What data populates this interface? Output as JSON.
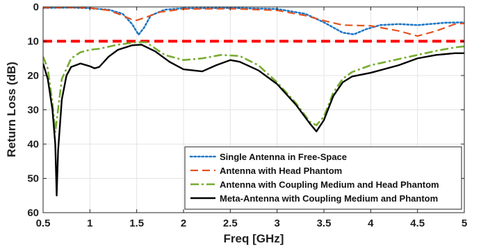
{
  "chart_data": {
    "type": "line",
    "title": "",
    "xlabel": "Freq [GHz]",
    "ylabel": "Return Loss (dB)",
    "xlim": [
      0.5,
      5
    ],
    "ylim": [
      0,
      60
    ],
    "y_inverted": true,
    "grid": true,
    "legend_position": "bottom-right",
    "xticks": [
      0.5,
      1,
      1.5,
      2,
      2.5,
      3,
      3.5,
      4,
      4.5,
      5
    ],
    "yticks": [
      0,
      10,
      20,
      30,
      40,
      50,
      60
    ],
    "reference_line": {
      "y": 10,
      "color": "#ff0000",
      "style": "dashed"
    },
    "series": [
      {
        "name": "Single Antenna in Free-Space",
        "color": "#1f77c4",
        "style": "dotted",
        "points": [
          [
            0.5,
            0.3
          ],
          [
            0.8,
            0.2
          ],
          [
            1.0,
            0.4
          ],
          [
            1.2,
            0.8
          ],
          [
            1.35,
            2
          ],
          [
            1.45,
            5
          ],
          [
            1.52,
            8.1
          ],
          [
            1.58,
            6
          ],
          [
            1.65,
            2.5
          ],
          [
            1.8,
            0.8
          ],
          [
            2.0,
            0.4
          ],
          [
            2.5,
            0.3
          ],
          [
            3.0,
            0.6
          ],
          [
            3.3,
            2
          ],
          [
            3.5,
            4.5
          ],
          [
            3.7,
            7.5
          ],
          [
            3.82,
            8
          ],
          [
            3.95,
            6.5
          ],
          [
            4.1,
            5.3
          ],
          [
            4.3,
            5
          ],
          [
            4.5,
            5.3
          ],
          [
            4.8,
            4.6
          ],
          [
            5.0,
            4.5
          ]
        ]
      },
      {
        "name": "Antenna with Head Phantom",
        "color": "#e6531f",
        "style": "dashed",
        "points": [
          [
            0.5,
            0.2
          ],
          [
            0.8,
            0.2
          ],
          [
            1.0,
            0.3
          ],
          [
            1.2,
            1
          ],
          [
            1.35,
            2.5
          ],
          [
            1.45,
            3.7
          ],
          [
            1.5,
            3.9
          ],
          [
            1.6,
            3
          ],
          [
            1.75,
            1.5
          ],
          [
            2.0,
            0.6
          ],
          [
            2.5,
            0.5
          ],
          [
            3.0,
            1
          ],
          [
            3.3,
            2.5
          ],
          [
            3.5,
            4
          ],
          [
            3.7,
            5.3
          ],
          [
            4.0,
            5.5
          ],
          [
            4.3,
            7
          ],
          [
            4.5,
            8.5
          ],
          [
            4.7,
            7
          ],
          [
            4.9,
            5
          ],
          [
            5.0,
            4.8
          ]
        ]
      },
      {
        "name": "Antenna with Coupling Medium and Head Phantom",
        "color": "#77ac30",
        "style": "dashdot",
        "points": [
          [
            0.5,
            14.5
          ],
          [
            0.55,
            18
          ],
          [
            0.6,
            28
          ],
          [
            0.63,
            36.5
          ],
          [
            0.66,
            30
          ],
          [
            0.7,
            21
          ],
          [
            0.8,
            15
          ],
          [
            0.9,
            13.2
          ],
          [
            1.0,
            12.5
          ],
          [
            1.1,
            12.2
          ],
          [
            1.3,
            11
          ],
          [
            1.5,
            10.3
          ],
          [
            1.6,
            10.3
          ],
          [
            1.8,
            14
          ],
          [
            2.0,
            15.5
          ],
          [
            2.2,
            15
          ],
          [
            2.4,
            14
          ],
          [
            2.6,
            14.3
          ],
          [
            2.8,
            17
          ],
          [
            3.0,
            22
          ],
          [
            3.2,
            28
          ],
          [
            3.35,
            33.5
          ],
          [
            3.42,
            34.5
          ],
          [
            3.5,
            32
          ],
          [
            3.6,
            25
          ],
          [
            3.7,
            21
          ],
          [
            3.8,
            19
          ],
          [
            4.0,
            17
          ],
          [
            4.3,
            15.2
          ],
          [
            4.5,
            14
          ],
          [
            4.7,
            12.8
          ],
          [
            4.9,
            11.8
          ],
          [
            5.0,
            11.5
          ]
        ]
      },
      {
        "name": "Meta-Antenna with Coupling Medium and Phantom",
        "color": "#000000",
        "style": "solid",
        "points": [
          [
            0.5,
            16.5
          ],
          [
            0.55,
            21
          ],
          [
            0.6,
            30
          ],
          [
            0.63,
            40
          ],
          [
            0.645,
            55
          ],
          [
            0.66,
            42
          ],
          [
            0.7,
            27
          ],
          [
            0.75,
            20
          ],
          [
            0.8,
            17.5
          ],
          [
            0.9,
            16.5
          ],
          [
            1.0,
            17.3
          ],
          [
            1.05,
            17.9
          ],
          [
            1.1,
            17.5
          ],
          [
            1.2,
            14.5
          ],
          [
            1.3,
            12.5
          ],
          [
            1.45,
            11.2
          ],
          [
            1.55,
            11
          ],
          [
            1.7,
            13
          ],
          [
            1.85,
            16
          ],
          [
            2.0,
            18.2
          ],
          [
            2.2,
            18.8
          ],
          [
            2.35,
            17
          ],
          [
            2.5,
            15.5
          ],
          [
            2.6,
            16
          ],
          [
            2.8,
            18.5
          ],
          [
            3.0,
            22.5
          ],
          [
            3.2,
            28.5
          ],
          [
            3.35,
            34
          ],
          [
            3.42,
            36.3
          ],
          [
            3.5,
            33
          ],
          [
            3.6,
            26
          ],
          [
            3.7,
            22
          ],
          [
            3.8,
            20.3
          ],
          [
            4.0,
            19.2
          ],
          [
            4.3,
            17
          ],
          [
            4.5,
            15
          ],
          [
            4.7,
            14
          ],
          [
            4.9,
            13.5
          ],
          [
            5.0,
            13.5
          ]
        ]
      }
    ]
  }
}
